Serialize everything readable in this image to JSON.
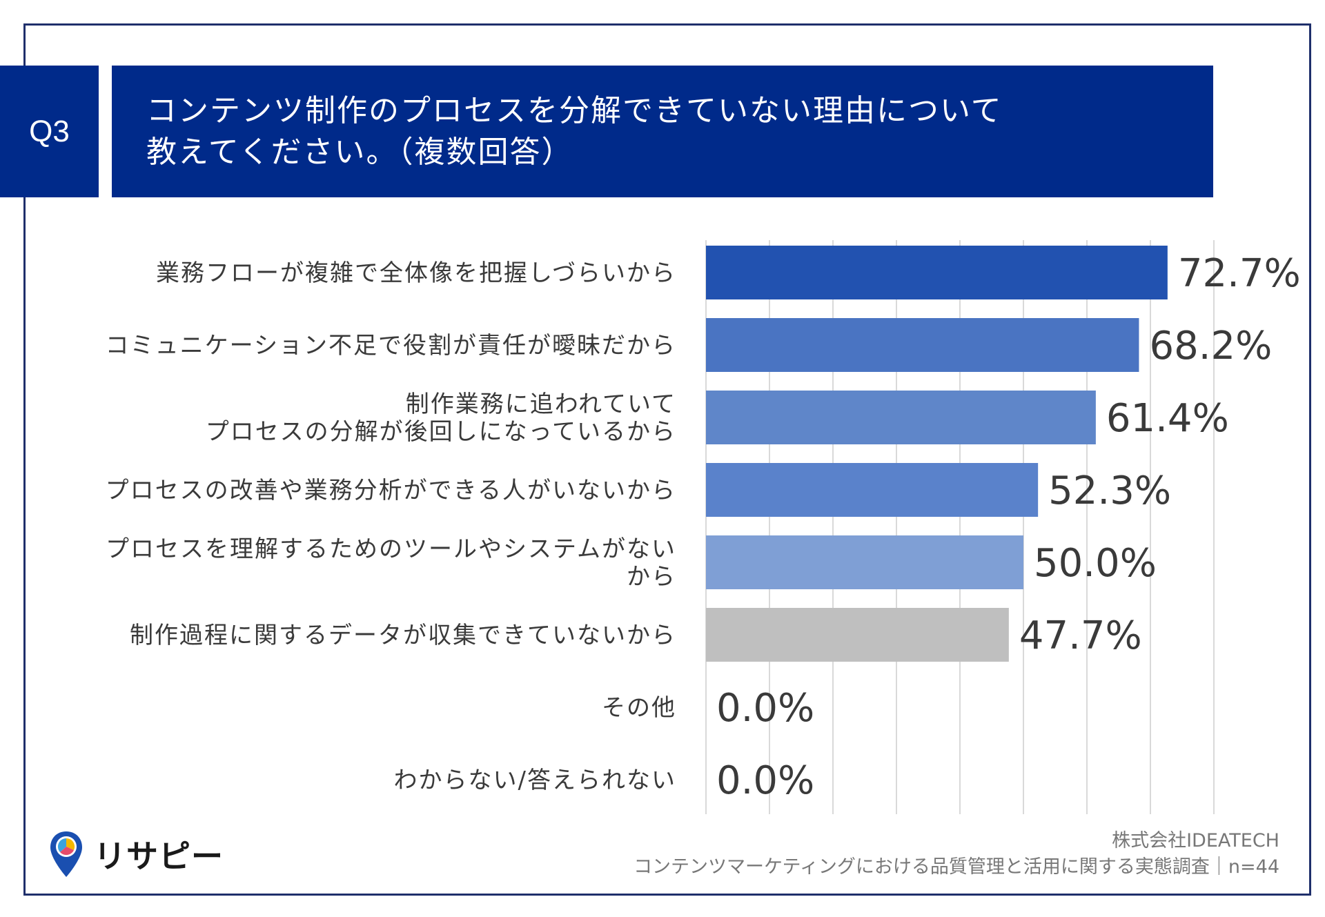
{
  "header": {
    "badge": "Q3",
    "title_line1": "コンテンツ制作のプロセスを分解できていない理由について",
    "title_line2": "教えてください。（複数回答）"
  },
  "chart_data": {
    "type": "bar",
    "orientation": "horizontal",
    "categories": [
      [
        "業務フローが複雑で全体像を把握しづらいから"
      ],
      [
        "コミュニケーション不足で役割が責任が曖昧だから"
      ],
      [
        "制作業務に追われていて",
        "プロセスの分解が後回しになっているから"
      ],
      [
        "プロセスの改善や業務分析ができる人がいないから"
      ],
      [
        "プロセスを理解するためのツールやシステムがない",
        "から"
      ],
      [
        "制作過程に関するデータが収集できていないから"
      ],
      [
        "その他"
      ],
      [
        "わからない/答えられない"
      ]
    ],
    "values": [
      72.7,
      68.2,
      61.4,
      52.3,
      50.0,
      47.7,
      0.0,
      0.0
    ],
    "value_labels": [
      "72.7%",
      "68.2%",
      "61.4%",
      "52.3%",
      "50.0%",
      "47.7%",
      "0.0%",
      "0.0%"
    ],
    "colors": [
      "#2252b0",
      "#4a74c2",
      "#5f86c9",
      "#5a82cb",
      "#7f9fd5",
      "#bfbfbf",
      "#bfbfbf",
      "#bfbfbf"
    ],
    "xlim": [
      0,
      80
    ],
    "grid": true
  },
  "footer": {
    "company": "株式会社IDEATECH",
    "survey": "コンテンツマーケティングにおける品質管理と活用に関する実態調査｜n=44"
  },
  "logo": {
    "text": "リサピー"
  }
}
